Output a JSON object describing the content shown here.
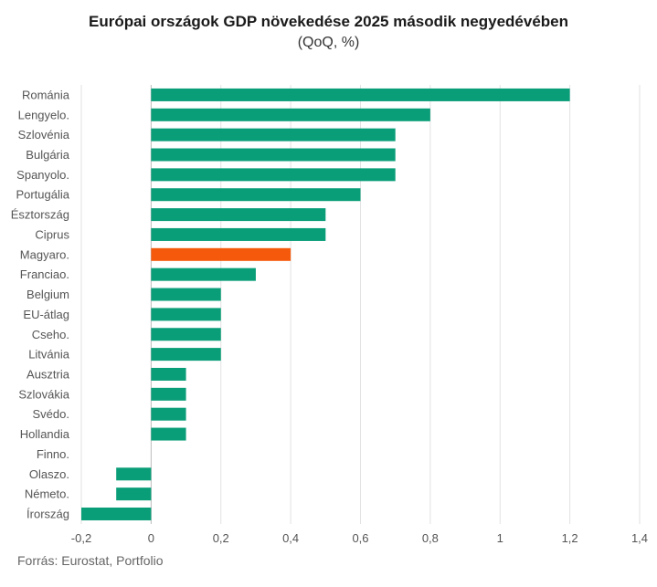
{
  "chart_data": {
    "type": "bar",
    "orientation": "horizontal",
    "title": "Európai országok GDP növekedése 2025 második negyedévében",
    "subtitle": "(QoQ, %)",
    "categories": [
      "Románia",
      "Lengyelo.",
      "Szlovénia",
      "Bulgária",
      "Spanyolo.",
      "Portugália",
      "Észtország",
      "Ciprus",
      "Magyaro.",
      "Franciao.",
      "Belgium",
      "EU-átlag",
      "Cseho.",
      "Litvánia",
      "Ausztria",
      "Szlovákia",
      "Svédo.",
      "Hollandia",
      "Finno.",
      "Olaszo.",
      "Németo.",
      "Írország"
    ],
    "values": [
      1.2,
      0.8,
      0.7,
      0.7,
      0.7,
      0.6,
      0.5,
      0.5,
      0.4,
      0.3,
      0.2,
      0.2,
      0.2,
      0.2,
      0.1,
      0.1,
      0.1,
      0.1,
      0.0,
      -0.1,
      -0.1,
      -0.2
    ],
    "highlight_category": "Magyaro.",
    "colors": {
      "default": "#0a9e78",
      "highlight": "#f55a0c",
      "grid": "#e2e2e2",
      "zero_line": "#bbbbbb"
    },
    "xlim": [
      -0.2,
      1.4
    ],
    "xticks": [
      "-0,2",
      "0",
      "0,2",
      "0,4",
      "0,6",
      "0,8",
      "1",
      "1,2",
      "1,4"
    ],
    "grid": "vertical",
    "legend": "none"
  },
  "source": "Forrás: Eurostat, Portfolio"
}
